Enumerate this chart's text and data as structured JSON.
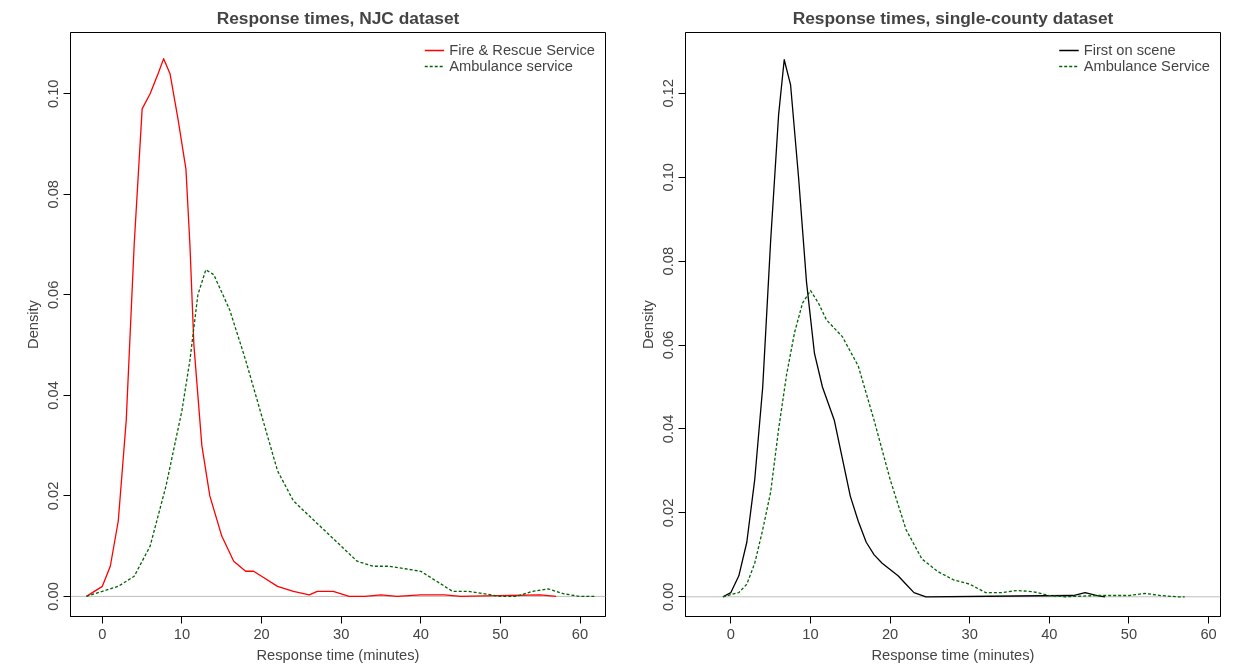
{
  "chart_data": [
    {
      "type": "line",
      "title": "Response times, NJC dataset",
      "xlabel": "Response time (minutes)",
      "ylabel": "Density",
      "xlim": [
        -4,
        63.2
      ],
      "ylim": [
        -0.004,
        0.1122
      ],
      "xticks": [
        0,
        10,
        20,
        30,
        40,
        50,
        60
      ],
      "yticks": [
        {
          "value": 0,
          "label": "0.00"
        },
        {
          "value": 0.02,
          "label": "0.02"
        },
        {
          "value": 0.04,
          "label": "0.04"
        },
        {
          "value": 0.06,
          "label": "0.06"
        },
        {
          "value": 0.08,
          "label": "0.08"
        },
        {
          "value": 0.1,
          "label": "0.10"
        }
      ],
      "grid": false,
      "legend": "top right",
      "ref_lines": [
        {
          "axis": "y",
          "value": 0,
          "color": "#bebebe"
        }
      ],
      "series": [
        {
          "name": "Fire & Rescue Service",
          "color": "#ff0000",
          "line_style": "solid",
          "x": [
            -2,
            0,
            1,
            2,
            3,
            4,
            5,
            6,
            7,
            7.7,
            8.5,
            9.5,
            10.5,
            11,
            11.5,
            12.5,
            13.5,
            15,
            16.5,
            18,
            19,
            20,
            22,
            24,
            26,
            27,
            29,
            31,
            33,
            35,
            37,
            40,
            43,
            45,
            55,
            57
          ],
          "values": [
            0,
            0.002,
            0.006,
            0.015,
            0.035,
            0.07,
            0.097,
            0.1,
            0.104,
            0.107,
            0.104,
            0.095,
            0.085,
            0.07,
            0.05,
            0.03,
            0.02,
            0.012,
            0.007,
            0.005,
            0.005,
            0.004,
            0.002,
            0.001,
            0.0003,
            0.001,
            0.001,
            0,
            0,
            0.0003,
            0,
            0.0003,
            0.0003,
            0,
            0.0003,
            0
          ]
        },
        {
          "name": "Ambulance service",
          "color": "#006400",
          "line_style": "dashed",
          "x": [
            -2,
            0,
            2,
            4,
            6,
            8,
            10,
            11,
            12,
            13,
            14,
            16,
            18,
            20,
            22,
            24,
            26,
            28,
            30,
            32,
            34,
            36,
            38,
            40,
            42,
            44,
            46,
            50,
            52,
            54,
            56,
            58,
            60,
            62
          ],
          "values": [
            0,
            0.001,
            0.002,
            0.004,
            0.01,
            0.022,
            0.037,
            0.047,
            0.06,
            0.065,
            0.064,
            0.057,
            0.047,
            0.036,
            0.025,
            0.019,
            0.016,
            0.013,
            0.01,
            0.007,
            0.006,
            0.006,
            0.0055,
            0.005,
            0.003,
            0.001,
            0.001,
            0,
            0,
            0.001,
            0.0015,
            0.0005,
            0,
            0
          ]
        }
      ]
    },
    {
      "type": "line",
      "title": "Response times, single-county dataset",
      "xlabel": "Response time (minutes)",
      "ylabel": "Density",
      "xlim": [
        -5.7,
        61.5
      ],
      "ylim": [
        -0.0047,
        0.1345
      ],
      "xticks": [
        0,
        10,
        20,
        30,
        40,
        50,
        60
      ],
      "yticks": [
        {
          "value": 0,
          "label": "0.00"
        },
        {
          "value": 0.02,
          "label": "0.02"
        },
        {
          "value": 0.04,
          "label": "0.04"
        },
        {
          "value": 0.06,
          "label": "0.06"
        },
        {
          "value": 0.08,
          "label": "0.08"
        },
        {
          "value": 0.1,
          "label": "0.10"
        },
        {
          "value": 0.12,
          "label": "0.12"
        }
      ],
      "grid": false,
      "legend": "top right",
      "ref_lines": [
        {
          "axis": "y",
          "value": 0,
          "color": "#bebebe"
        }
      ],
      "series": [
        {
          "name": "First on scene",
          "color": "#000000",
          "line_style": "solid",
          "x": [
            -1,
            0,
            1,
            2,
            3,
            4,
            5,
            6,
            6.7,
            7.5,
            8.5,
            9.5,
            10.5,
            11.5,
            13,
            14,
            15,
            16,
            17,
            18,
            19,
            20,
            21,
            22,
            23,
            24.5,
            43,
            44.5,
            46,
            47
          ],
          "values": [
            0,
            0.001,
            0.005,
            0.013,
            0.028,
            0.05,
            0.085,
            0.115,
            0.128,
            0.122,
            0.1,
            0.075,
            0.058,
            0.05,
            0.042,
            0.033,
            0.024,
            0.018,
            0.013,
            0.01,
            0.008,
            0.0065,
            0.005,
            0.003,
            0.001,
            0,
            0.0003,
            0.001,
            0.0003,
            0
          ]
        },
        {
          "name": "Ambulance Service",
          "color": "#006400",
          "line_style": "dashed",
          "x": [
            -1,
            1,
            2,
            3,
            4,
            5,
            6,
            7,
            8,
            9,
            10,
            11,
            12,
            14,
            16,
            18,
            20,
            22,
            24,
            26,
            28,
            30,
            32,
            34,
            36,
            38,
            40,
            42,
            46,
            50,
            52,
            54,
            56,
            57
          ],
          "values": [
            0,
            0.001,
            0.003,
            0.008,
            0.016,
            0.025,
            0.04,
            0.053,
            0.063,
            0.07,
            0.073,
            0.07,
            0.066,
            0.062,
            0.055,
            0.042,
            0.028,
            0.016,
            0.009,
            0.006,
            0.004,
            0.003,
            0.001,
            0.001,
            0.0015,
            0.0012,
            0.0003,
            0,
            0.0003,
            0.0003,
            0.0008,
            0.0003,
            0,
            0
          ]
        }
      ]
    }
  ]
}
